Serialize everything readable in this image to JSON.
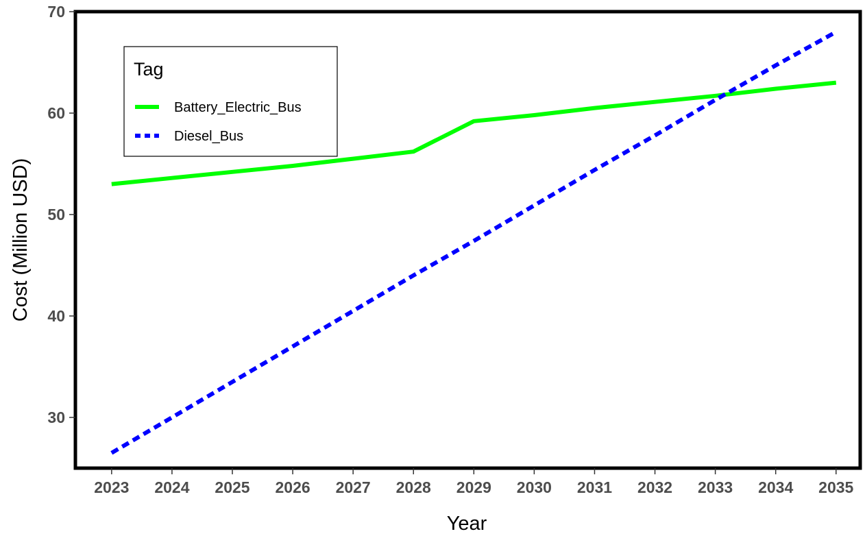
{
  "chart_data": {
    "type": "line",
    "title": "",
    "xlabel": "Year",
    "ylabel": "Cost (Million USD)",
    "x": [
      2023,
      2024,
      2025,
      2026,
      2027,
      2028,
      2029,
      2030,
      2031,
      2032,
      2033,
      2034,
      2035
    ],
    "xlim": [
      2022.4,
      2035.4
    ],
    "ylim": [
      25,
      70
    ],
    "yticks": [
      30,
      40,
      50,
      60,
      70
    ],
    "grid": false,
    "legend": {
      "title": "Tag",
      "placement": "top-left"
    },
    "series": [
      {
        "name": "Battery_Electric_Bus",
        "color": "#00ff00",
        "style": "solid",
        "values": [
          53.0,
          53.6,
          54.2,
          54.8,
          55.5,
          56.2,
          59.2,
          59.8,
          60.5,
          61.1,
          61.7,
          62.4,
          63.0
        ]
      },
      {
        "name": "Diesel_Bus",
        "color": "#0000ff",
        "style": "dotted",
        "values": [
          26.5,
          30.0,
          33.5,
          37.0,
          40.5,
          44.0,
          47.4,
          50.9,
          54.4,
          57.8,
          61.3,
          64.7,
          68.0
        ]
      }
    ]
  }
}
